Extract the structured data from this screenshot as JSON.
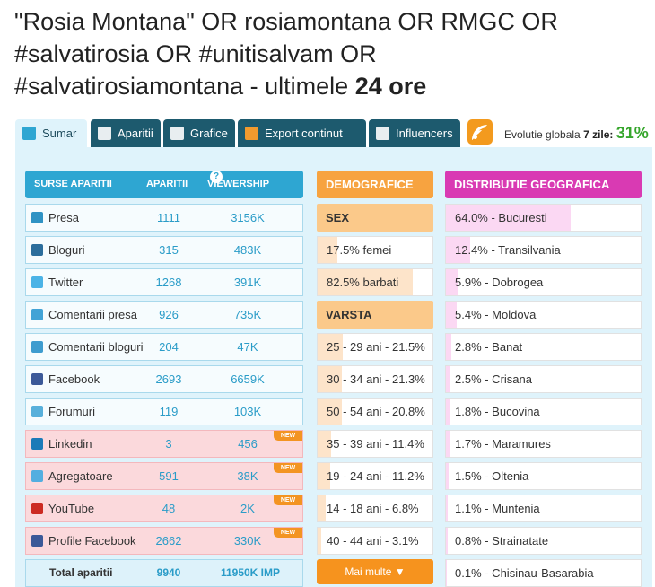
{
  "title": {
    "line1": "\"Rosia Montana\" OR rosiamontana OR RMGC OR",
    "line2": "#salvatirosia OR #unitisalvam OR",
    "line3": "#salvatirosiamontana - ultimele ",
    "bold": "24 ore"
  },
  "tabs": [
    {
      "label": "Sumar",
      "icon": "summary-icon"
    },
    {
      "label": "Aparitii",
      "icon": "list-icon"
    },
    {
      "label": "Grafice",
      "icon": "chart-icon"
    },
    {
      "label": "Export continut",
      "icon": "export-icon"
    },
    {
      "label": "Influencers",
      "icon": "network-icon"
    }
  ],
  "global": {
    "label": "Evolutie globala",
    "days": "7 zile:",
    "pct": "31%"
  },
  "sources": {
    "headers": {
      "source": "SURSE APARITII",
      "count": "APARITII",
      "viewership": "VIEWERSHIP",
      "help": "?"
    },
    "rows": [
      {
        "label": "Presa",
        "count": "1111",
        "view": "3156K",
        "icon": "press-icon",
        "color": "#2f93c4",
        "new": false
      },
      {
        "label": "Bloguri",
        "count": "315",
        "view": "483K",
        "icon": "blog-icon",
        "color": "#2c6e9c",
        "new": false
      },
      {
        "label": "Twitter",
        "count": "1268",
        "view": "391K",
        "icon": "twitter-icon",
        "color": "#4bb3e6",
        "new": false
      },
      {
        "label": "Comentarii presa",
        "count": "926",
        "view": "735K",
        "icon": "comment-icon",
        "color": "#42a3d6",
        "new": false
      },
      {
        "label": "Comentarii bloguri",
        "count": "204",
        "view": "47K",
        "icon": "chat-icon",
        "color": "#3e9ccf",
        "new": false
      },
      {
        "label": "Facebook",
        "count": "2693",
        "view": "6659K",
        "icon": "facebook-icon",
        "color": "#3b5998",
        "new": false
      },
      {
        "label": "Forumuri",
        "count": "119",
        "view": "103K",
        "icon": "forum-icon",
        "color": "#58b0db",
        "new": false
      },
      {
        "label": "Linkedin",
        "count": "3",
        "view": "456",
        "icon": "linkedin-icon",
        "color": "#1b7ab8",
        "new": true
      },
      {
        "label": "Agregatoare",
        "count": "591",
        "view": "38K",
        "icon": "aggregator-icon",
        "color": "#53aee0",
        "new": true
      },
      {
        "label": "YouTube",
        "count": "48",
        "view": "2K",
        "icon": "youtube-icon",
        "color": "#cc2b23",
        "new": true
      },
      {
        "label": "Profile Facebook",
        "count": "2662",
        "view": "330K",
        "icon": "facebook-icon",
        "color": "#3b5998",
        "new": true
      }
    ],
    "new_badge": "NEW",
    "total": {
      "label": "Total aparitii",
      "count": "9940",
      "view": "11950K IMP"
    }
  },
  "demo": {
    "header": "DEMOGRAFICE",
    "sex_label": "SEX",
    "sex": [
      {
        "text": "17.5% femei",
        "pct": 17.5
      },
      {
        "text": "82.5% barbati",
        "pct": 82.5
      }
    ],
    "age_label": "VARSTA",
    "age": [
      {
        "text": "25 - 29 ani - 21.5%",
        "pct": 21.5
      },
      {
        "text": "30 - 34 ani - 21.3%",
        "pct": 21.3
      },
      {
        "text": "50 - 54 ani - 20.8%",
        "pct": 20.8
      },
      {
        "text": "35 - 39 ani - 11.4%",
        "pct": 11.4
      },
      {
        "text": "19 - 24 ani - 11.2%",
        "pct": 11.2
      },
      {
        "text": "14 - 18 ani - 6.8%",
        "pct": 6.8
      },
      {
        "text": "40 - 44 ani - 3.1%",
        "pct": 3.1
      }
    ],
    "more": "Mai multe ▼"
  },
  "geo": {
    "header": "DISTRIBUTIE GEOGRAFICA",
    "rows": [
      {
        "text": "64.0% - Bucuresti",
        "pct": 64.0
      },
      {
        "text": "12.4% - Transilvania",
        "pct": 12.4
      },
      {
        "text": "5.9% - Dobrogea",
        "pct": 5.9
      },
      {
        "text": "5.4% - Moldova",
        "pct": 5.4
      },
      {
        "text": "2.8% - Banat",
        "pct": 2.8
      },
      {
        "text": "2.5% - Crisana",
        "pct": 2.5
      },
      {
        "text": "1.8% - Bucovina",
        "pct": 1.8
      },
      {
        "text": "1.7% - Maramures",
        "pct": 1.7
      },
      {
        "text": "1.5% - Oltenia",
        "pct": 1.5
      },
      {
        "text": "1.1% - Muntenia",
        "pct": 1.1
      },
      {
        "text": "0.8% - Strainatate",
        "pct": 0.8
      },
      {
        "text": "0.1% - Chisinau-Basarabia",
        "pct": 0.1
      }
    ]
  },
  "colors": {
    "tab": "#1d5a6e",
    "sources": "#2ea6d2",
    "demo": "#f7a340",
    "geo": "#d93ab3",
    "growth": "#36a62c"
  }
}
